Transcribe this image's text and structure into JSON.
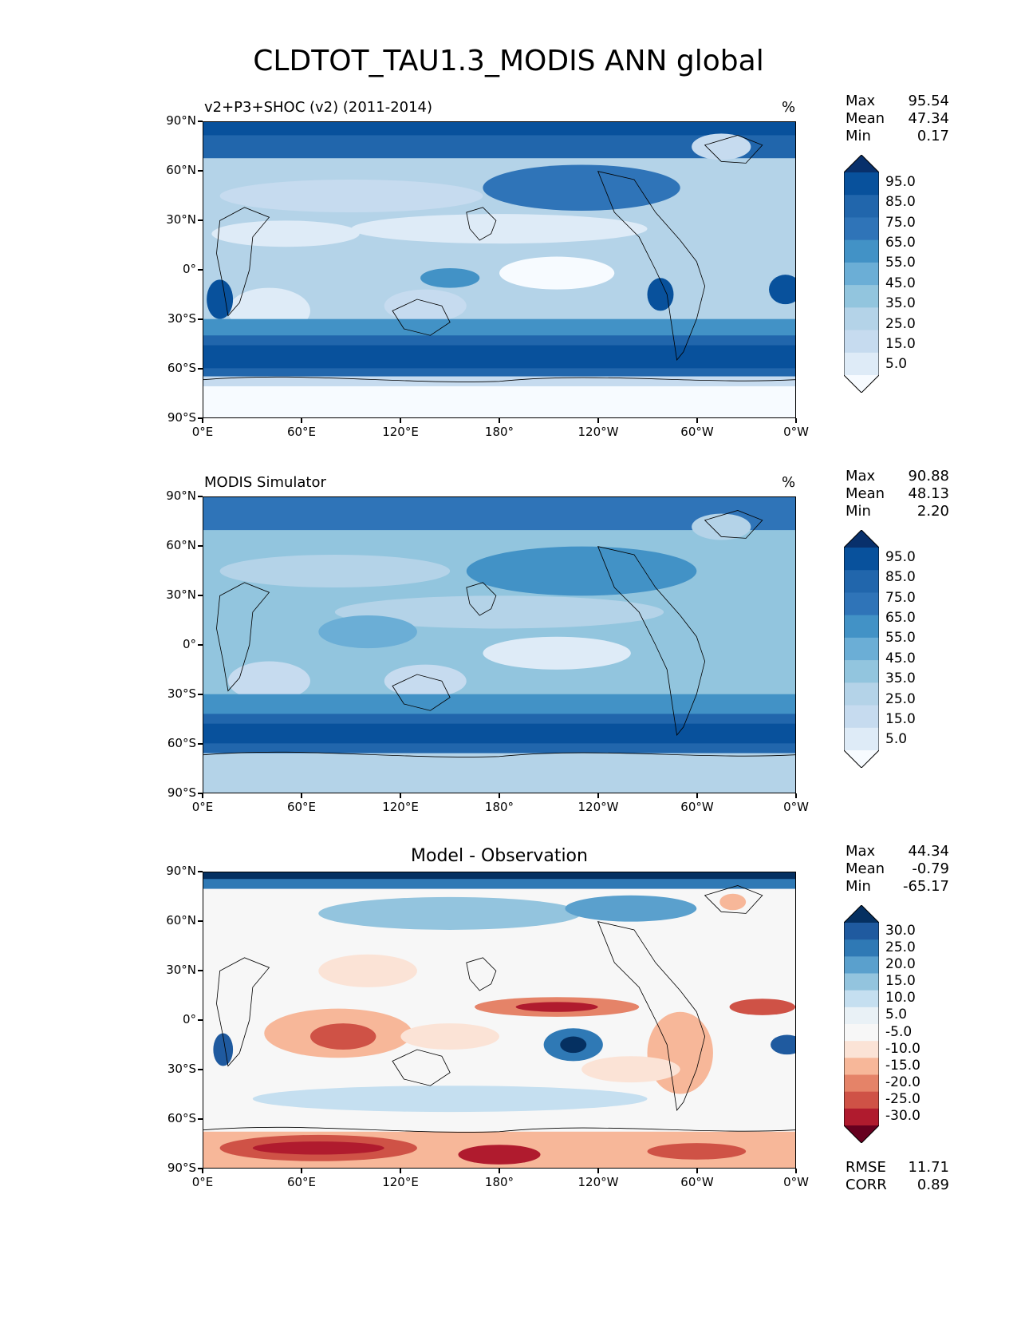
{
  "figure_title": "CLDTOT_TAU1.3_MODIS ANN global",
  "lat_labels": [
    "90°N",
    "60°N",
    "30°N",
    "0°",
    "30°S",
    "60°S",
    "90°S"
  ],
  "lon_labels": [
    "0°E",
    "60°E",
    "120°E",
    "180°",
    "120°W",
    "60°W",
    "0°W"
  ],
  "seq_levels": [
    "95.0",
    "85.0",
    "75.0",
    "65.0",
    "55.0",
    "45.0",
    "35.0",
    "25.0",
    "15.0",
    "5.0"
  ],
  "seq_colors": [
    "#08306b",
    "#08519c",
    "#2166ac",
    "#2f74b8",
    "#4292c6",
    "#6baed6",
    "#92c5de",
    "#b4d3e8",
    "#c6dbef",
    "#deebf7",
    "#f7fbff"
  ],
  "diff_levels": [
    "30.0",
    "25.0",
    "20.0",
    "15.0",
    "10.0",
    "5.0",
    "-5.0",
    "-10.0",
    "-15.0",
    "-20.0",
    "-25.0",
    "-30.0"
  ],
  "diff_colors": [
    "#053061",
    "#1f5a9f",
    "#2f79b5",
    "#5aa0cd",
    "#93c4de",
    "#c5dff0",
    "#e9f1f6",
    "#f7f7f7",
    "#fbe3d6",
    "#f7b799",
    "#e58368",
    "#cf5246",
    "#b01b2e",
    "#67001f"
  ],
  "panels": [
    {
      "title": "v2+P3+SHOC (v2) (2011-2014)",
      "units": "%",
      "stats": [
        {
          "label": "Max",
          "value": "95.54"
        },
        {
          "label": "Mean",
          "value": "47.34"
        },
        {
          "label": "Min",
          "value": "0.17"
        }
      ]
    },
    {
      "title": "MODIS Simulator",
      "units": "%",
      "stats": [
        {
          "label": "Max",
          "value": "90.88"
        },
        {
          "label": "Mean",
          "value": "48.13"
        },
        {
          "label": "Min",
          "value": "2.20"
        }
      ]
    },
    {
      "title": "Model - Observation",
      "units": "",
      "stats": [
        {
          "label": "Max",
          "value": "44.34"
        },
        {
          "label": "Mean",
          "value": "-0.79"
        },
        {
          "label": "Min",
          "value": "-65.17"
        }
      ],
      "extra_stats": [
        {
          "label": "RMSE",
          "value": "11.71"
        },
        {
          "label": "CORR",
          "value": "0.89"
        }
      ]
    }
  ]
}
